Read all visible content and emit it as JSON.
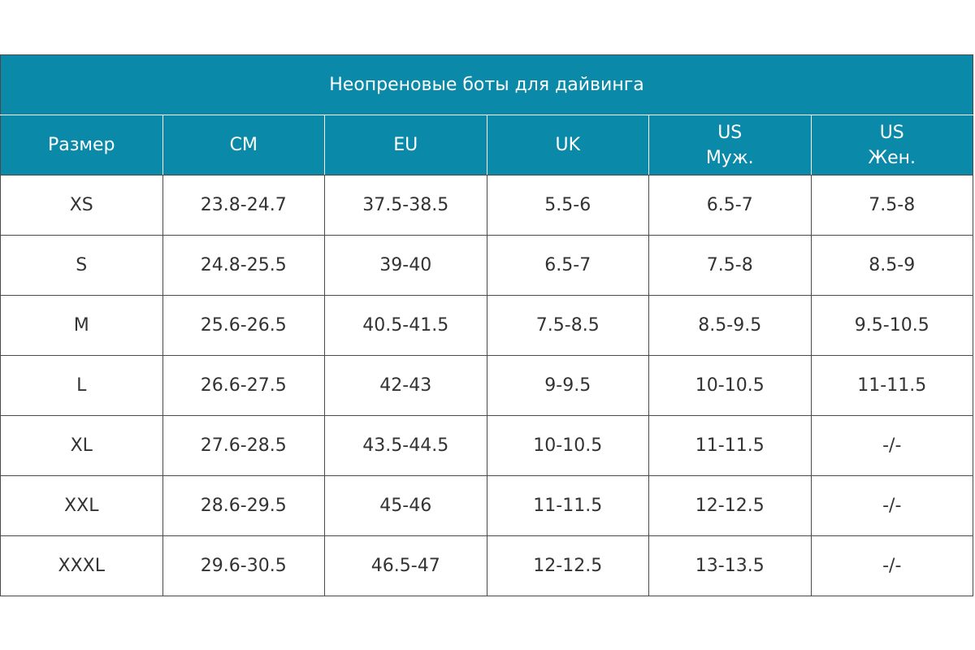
{
  "table": {
    "title": "Неопреновые боты для дайвинга",
    "headers": [
      {
        "line1": "Размер",
        "line2": ""
      },
      {
        "line1": "CM",
        "line2": ""
      },
      {
        "line1": "EU",
        "line2": ""
      },
      {
        "line1": "UK",
        "line2": ""
      },
      {
        "line1": "US",
        "line2": "Муж."
      },
      {
        "line1": "US",
        "line2": "Жен."
      }
    ],
    "rows": [
      [
        "XS",
        "23.8-24.7",
        "37.5-38.5",
        "5.5-6",
        "6.5-7",
        "7.5-8"
      ],
      [
        "S",
        "24.8-25.5",
        "39-40",
        "6.5-7",
        "7.5-8",
        "8.5-9"
      ],
      [
        "M",
        "25.6-26.5",
        "40.5-41.5",
        "7.5-8.5",
        "8.5-9.5",
        "9.5-10.5"
      ],
      [
        "L",
        "26.6-27.5",
        "42-43",
        "9-9.5",
        "10-10.5",
        "11-11.5"
      ],
      [
        "XL",
        "27.6-28.5",
        "43.5-44.5",
        "10-10.5",
        "11-11.5",
        "-/-"
      ],
      [
        "XXL",
        "28.6-29.5",
        "45-46",
        "11-11.5",
        "12-12.5",
        "-/-"
      ],
      [
        "XXXL",
        "29.6-30.5",
        "46.5-47",
        "12-12.5",
        "13-13.5",
        "-/-"
      ]
    ]
  },
  "colors": {
    "header_bg": "#0a8aa8",
    "header_text": "#ffffff",
    "body_text": "#333333",
    "border": "#4a4a4a"
  }
}
